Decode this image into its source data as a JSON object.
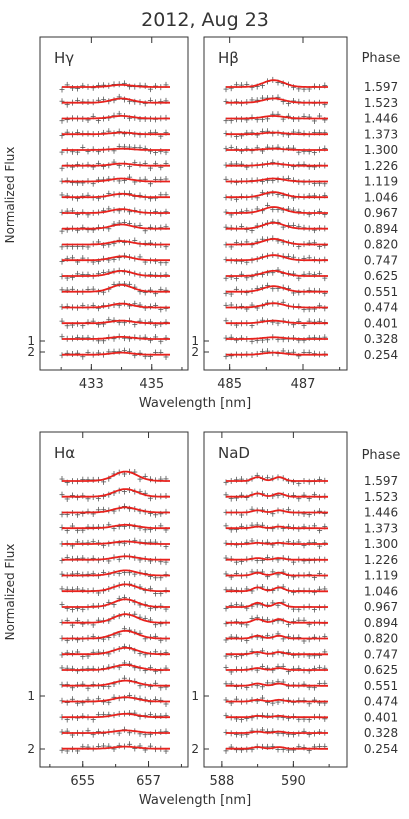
{
  "title": "2012, Aug 23",
  "phase_label": "Phase",
  "phases": [
    "1.597",
    "1.523",
    "1.446",
    "1.373",
    "1.300",
    "1.226",
    "1.119",
    "1.046",
    "0.967",
    "0.894",
    "0.820",
    "0.747",
    "0.625",
    "0.551",
    "0.474",
    "0.401",
    "0.328",
    "0.254"
  ],
  "ylabel": "Normalized Flux",
  "xlabel": "Wavelength [nm]",
  "colors": {
    "model": "#e8211c",
    "observed": "#555555",
    "axes": "#333333"
  },
  "chart_data": [
    {
      "type": "line",
      "panel": "Hγ",
      "row": "top",
      "col": "left",
      "xlim": [
        431.3,
        436.2
      ],
      "xticks": [
        433,
        435
      ],
      "xtick_labels": [
        "433",
        "435"
      ],
      "ytick_labels": [
        "2",
        "1"
      ],
      "center": 434.0,
      "width": 0.5,
      "lines": [
        "434.0"
      ],
      "amplitudes": [
        0.05,
        0.1,
        0.06,
        0.04,
        0.03,
        0.05,
        0.07,
        0.08,
        0.09,
        0.1,
        0.08,
        0.09,
        0.12,
        0.16,
        0.09,
        0.06,
        0.05,
        0.05
      ]
    },
    {
      "type": "line",
      "panel": "Hβ",
      "row": "top",
      "col": "right",
      "xlim": [
        484.3,
        488.2
      ],
      "xticks": [
        485,
        487
      ],
      "xtick_labels": [
        "485",
        "487"
      ],
      "ytick_labels": [
        "2",
        "1"
      ],
      "center": 486.2,
      "width": 0.4,
      "lines": [
        "486.2"
      ],
      "amplitudes": [
        0.16,
        0.1,
        0.06,
        0.04,
        0.03,
        0.05,
        0.07,
        0.12,
        0.14,
        0.14,
        0.13,
        0.12,
        0.12,
        0.13,
        0.1,
        0.06,
        0.04,
        0.05
      ]
    },
    {
      "type": "line",
      "panel": "Hα",
      "row": "bottom",
      "col": "left",
      "xlim": [
        653.7,
        658.2
      ],
      "xticks": [
        655,
        657
      ],
      "xtick_labels": [
        "655",
        "657"
      ],
      "ytick_labels": [
        "2",
        "1"
      ],
      "center": 656.3,
      "width": 0.5,
      "lines": [
        "656.3"
      ],
      "amplitudes": [
        0.22,
        0.18,
        0.12,
        0.08,
        0.06,
        0.08,
        0.12,
        0.16,
        0.18,
        0.2,
        0.18,
        0.15,
        0.12,
        0.12,
        0.1,
        0.08,
        0.06,
        0.05
      ]
    },
    {
      "type": "line",
      "panel": "NaD",
      "row": "bottom",
      "col": "right",
      "xlim": [
        587.5,
        591.5
      ],
      "xticks": [
        588,
        590
      ],
      "xtick_labels": [
        "588",
        "590"
      ],
      "ytick_labels": [
        "2",
        "1"
      ],
      "center": 589.3,
      "width": 0.2,
      "lines": [
        "589.0",
        "589.6"
      ],
      "amplitudes": [
        0.14,
        0.12,
        0.08,
        0.06,
        0.04,
        0.06,
        0.1,
        0.14,
        0.15,
        0.13,
        0.1,
        0.08,
        0.07,
        0.08,
        0.06,
        0.05,
        0.05,
        0.06
      ]
    }
  ]
}
